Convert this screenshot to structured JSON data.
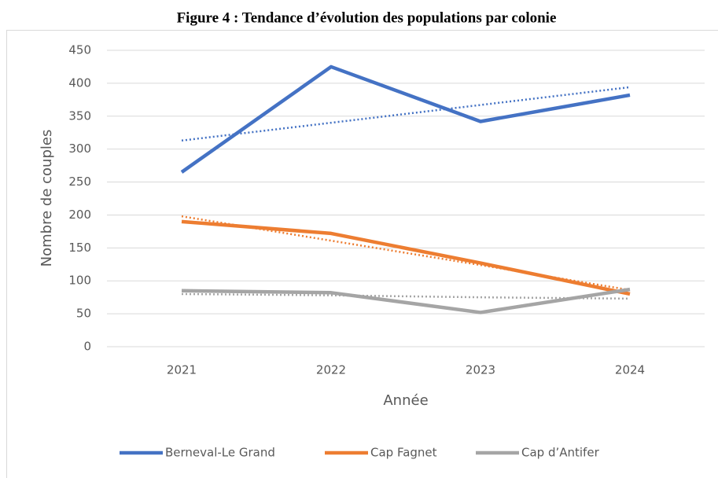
{
  "chart_data": {
    "type": "line",
    "title": "Figure 4 : Tendance d’évolution des populations par colonie",
    "x_label": "Année",
    "y_label": "Nombre de couples",
    "categories": [
      "2021",
      "2022",
      "2023",
      "2024"
    ],
    "series": [
      {
        "name": "Berneval-Le Grand",
        "color": "#4472c4",
        "values": [
          265,
          425,
          342,
          382
        ],
        "trend": [
          313,
          340,
          367,
          394
        ]
      },
      {
        "name": "Cap Fagnet",
        "color": "#ed7d31",
        "values": [
          190,
          172,
          127,
          80
        ],
        "trend": [
          198,
          161,
          124,
          86
        ]
      },
      {
        "name": "Cap d’Antifer",
        "color": "#a5a5a5",
        "values": [
          85,
          82,
          52,
          87
        ],
        "trend": [
          80,
          78,
          75,
          73
        ]
      }
    ],
    "ylim": [
      0,
      450
    ],
    "yticks": [
      0,
      50,
      100,
      150,
      200,
      250,
      300,
      350,
      400,
      450
    ],
    "grid": true,
    "legend": "bottom"
  }
}
